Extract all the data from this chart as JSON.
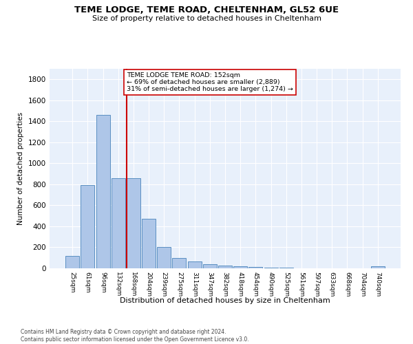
{
  "title": "TEME LODGE, TEME ROAD, CHELTENHAM, GL52 6UE",
  "subtitle": "Size of property relative to detached houses in Cheltenham",
  "xlabel": "Distribution of detached houses by size in Cheltenham",
  "ylabel": "Number of detached properties",
  "categories": [
    "25sqm",
    "61sqm",
    "96sqm",
    "132sqm",
    "168sqm",
    "204sqm",
    "239sqm",
    "275sqm",
    "311sqm",
    "347sqm",
    "382sqm",
    "418sqm",
    "454sqm",
    "490sqm",
    "525sqm",
    "561sqm",
    "597sqm",
    "633sqm",
    "668sqm",
    "704sqm",
    "740sqm"
  ],
  "values": [
    120,
    795,
    1460,
    860,
    860,
    475,
    200,
    100,
    65,
    40,
    28,
    22,
    10,
    8,
    5,
    3,
    2,
    0,
    0,
    0,
    18
  ],
  "bar_color": "#aec6e8",
  "bar_edge_color": "#5a8fc2",
  "vline_color": "#cc0000",
  "annotation_text": "TEME LODGE TEME ROAD: 152sqm\n← 69% of detached houses are smaller (2,889)\n31% of semi-detached houses are larger (1,274) →",
  "annotation_box_color": "#ffffff",
  "annotation_box_edge": "#cc0000",
  "ylim": [
    0,
    1900
  ],
  "yticks": [
    0,
    200,
    400,
    600,
    800,
    1000,
    1200,
    1400,
    1600,
    1800
  ],
  "footer": "Contains HM Land Registry data © Crown copyright and database right 2024.\nContains public sector information licensed under the Open Government Licence v3.0.",
  "plot_bg_color": "#e8f0fb",
  "fig_bg_color": "#ffffff",
  "grid_color": "#ffffff"
}
